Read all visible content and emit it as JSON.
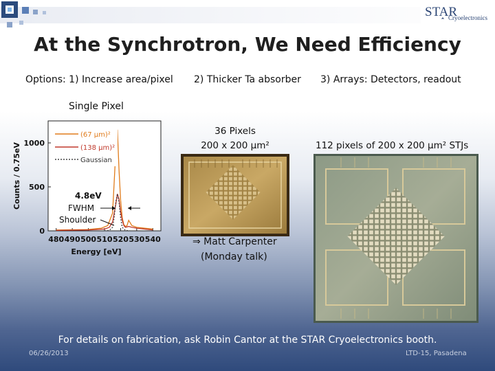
{
  "title": "At the Synchrotron, We Need Efficiency",
  "options": [
    "Options: 1) Increase area/pixel",
    "2) Thicker Ta absorber",
    "3) Arrays: Detectors, readout"
  ],
  "single_pixel_label": "Single Pixel",
  "pixels36": {
    "line1": "36 Pixels",
    "line2": "200 x 200 µm²"
  },
  "pixels112": "112 pixels of 200 x 200 µm² STJs",
  "carpenter": {
    "line1": "⇒ Matt Carpenter",
    "line2": "(Monday talk)"
  },
  "footer": "For details on fabrication, ask Robin Cantor at the STAR Cryoelectronics booth.",
  "date": "06/26/2013",
  "conference": "LTD-15, Pasadena",
  "logo": {
    "text": "STAR",
    "sub": "Cryoelectronics"
  },
  "chart_data": {
    "type": "line",
    "xlabel": "Energy [eV]",
    "ylabel": "Counts / 0.75eV",
    "xlim": [
      475,
      545
    ],
    "ylim": [
      0,
      1250
    ],
    "xticks": [
      480,
      490,
      500,
      510,
      520,
      530,
      540
    ],
    "yticks": [
      0,
      500,
      1000
    ],
    "legend": [
      "(67 µm)²",
      "(138 µm)²",
      "Gaussian"
    ],
    "annotations": [
      "4.8eV",
      "FWHM",
      "Shoulder"
    ],
    "series": [
      {
        "name": "(67 µm)²",
        "color": "#e07b1a",
        "x": [
          480,
          500,
          508,
          512,
          515,
          517,
          518,
          519,
          520,
          521,
          522,
          523,
          524,
          525,
          527,
          530,
          535,
          540
        ],
        "y": [
          10,
          15,
          30,
          60,
          200,
          900,
          1150,
          700,
          350,
          150,
          70,
          50,
          60,
          120,
          60,
          40,
          30,
          20
        ]
      },
      {
        "name": "(138 µm)²",
        "color": "#c0392b",
        "x": [
          480,
          500,
          510,
          513,
          515,
          517,
          518,
          519,
          520,
          521,
          522,
          523,
          525,
          527,
          530,
          535,
          540
        ],
        "y": [
          5,
          10,
          20,
          40,
          100,
          300,
          420,
          360,
          220,
          120,
          60,
          40,
          50,
          40,
          30,
          20,
          10
        ]
      },
      {
        "name": "Gaussian",
        "color": "#444444",
        "x": [
          510,
          513,
          515,
          516,
          517,
          518,
          519,
          520,
          521,
          523,
          526
        ],
        "y": [
          0,
          5,
          40,
          150,
          330,
          420,
          330,
          150,
          40,
          5,
          0
        ]
      }
    ]
  }
}
